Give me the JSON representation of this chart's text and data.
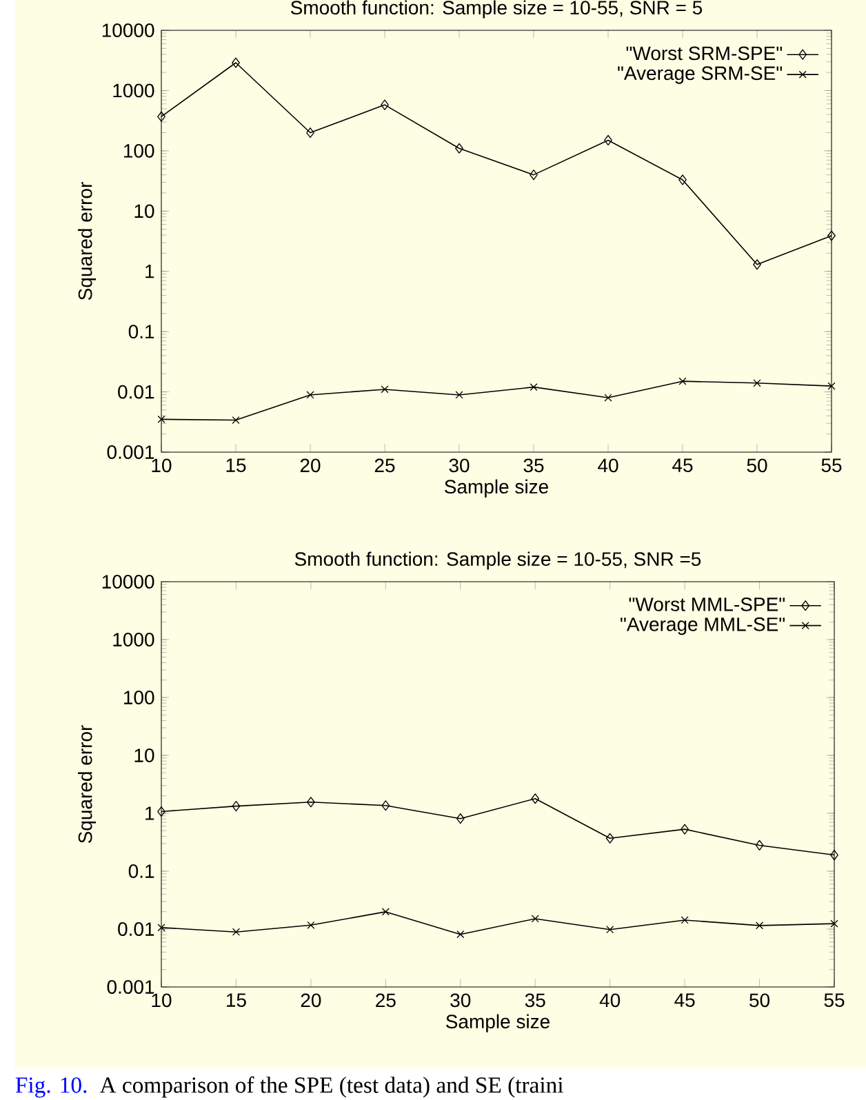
{
  "chart_data": [
    {
      "type": "line",
      "title": "Smooth function: Sample size = 10-55, SNR = 5",
      "xlabel": "Sample size",
      "ylabel": "Squared error",
      "x": [
        10,
        15,
        20,
        25,
        30,
        35,
        40,
        45,
        50,
        55
      ],
      "series": [
        {
          "name": "\"Worst SRM-SPE\"",
          "color": "#000000",
          "marker": "diamond",
          "values": [
            370,
            2900,
            200,
            580,
            110,
            40,
            150,
            33,
            1.3,
            3.9
          ]
        },
        {
          "name": "\"Average SRM-SE\"",
          "color": "#000000",
          "marker": "cross",
          "values": [
            0.0035,
            0.0034,
            0.0089,
            0.011,
            0.0089,
            0.012,
            0.008,
            0.015,
            0.014,
            0.0125
          ]
        }
      ],
      "log": "y",
      "xlim": [
        10,
        55
      ],
      "ylim": [
        0.001,
        10000
      ],
      "xticks": [
        10,
        15,
        20,
        25,
        30,
        35,
        40,
        45,
        50,
        55
      ],
      "yticks": [
        0.001,
        0.01,
        0.1,
        1,
        10,
        100,
        1000,
        10000
      ],
      "grid": false,
      "legend": "top right",
      "line_style": "solid"
    },
    {
      "type": "line",
      "title": "Smooth function: Sample size = 10-55, SNR =5",
      "xlabel": "Sample size",
      "ylabel": "Squared error",
      "x": [
        10,
        15,
        20,
        25,
        30,
        35,
        40,
        45,
        50,
        55
      ],
      "series": [
        {
          "name": "\"Worst MML-SPE\"",
          "color": "#000000",
          "marker": "diamond",
          "values": [
            1.07,
            1.33,
            1.56,
            1.36,
            0.81,
            1.79,
            0.37,
            0.53,
            0.28,
            0.19
          ]
        },
        {
          "name": "\"Average MML-SE\"",
          "color": "#000000",
          "marker": "cross",
          "values": [
            0.0106,
            0.0089,
            0.0117,
            0.0199,
            0.0081,
            0.0151,
            0.0098,
            0.0143,
            0.0115,
            0.0124
          ]
        }
      ],
      "log": "y",
      "xlim": [
        10,
        55
      ],
      "ylim": [
        0.001,
        10000
      ],
      "xticks": [
        10,
        15,
        20,
        25,
        30,
        35,
        40,
        45,
        50,
        55
      ],
      "yticks": [
        0.001,
        0.01,
        0.1,
        1,
        10,
        100,
        1000,
        10000
      ],
      "grid": false,
      "legend": "top right",
      "line_style": "solid",
      "annotations": [
        "Fig. 10.",
        "A comparison of the SPE (test data) and SE (traini"
      ]
    }
  ]
}
